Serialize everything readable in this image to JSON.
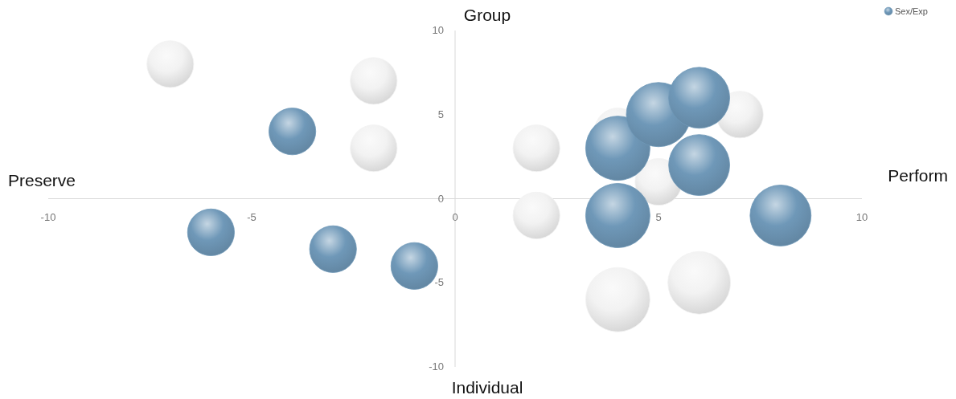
{
  "chart_data": {
    "type": "bubble",
    "annotations": [
      "Group",
      "Individual",
      "Preserve",
      "Perform"
    ],
    "xlim": [
      -10,
      10
    ],
    "ylim": [
      -10,
      10
    ],
    "xticks": [
      -10,
      -5,
      0,
      5,
      10
    ],
    "yticks": [
      -10,
      -5,
      0,
      5,
      10
    ],
    "grid": false,
    "legend": "top right",
    "series": [
      {
        "color": "#f2f2f2",
        "x": [
          -7,
          -2,
          -2,
          2,
          2,
          4,
          5,
          7,
          4,
          6
        ],
        "values": [
          8,
          7,
          3,
          3,
          -1,
          4,
          1,
          5,
          -6,
          -5
        ],
        "sizes": [
          0.53,
          0.53,
          0.53,
          0.53,
          0.53,
          0.53,
          0.53,
          0.53,
          1,
          0.95
        ]
      },
      {
        "name": "Sex/Exp",
        "color": "#6f98b8",
        "x": [
          -4,
          -6,
          -3,
          -1,
          4,
          5,
          6,
          6,
          4,
          8
        ],
        "values": [
          4,
          -2,
          -3,
          -4,
          3,
          5,
          6,
          2,
          -1,
          -1
        ],
        "sizes": [
          0.53,
          0.53,
          0.53,
          0.53,
          1,
          1,
          0.9,
          0.9,
          1,
          0.9
        ]
      }
    ]
  }
}
